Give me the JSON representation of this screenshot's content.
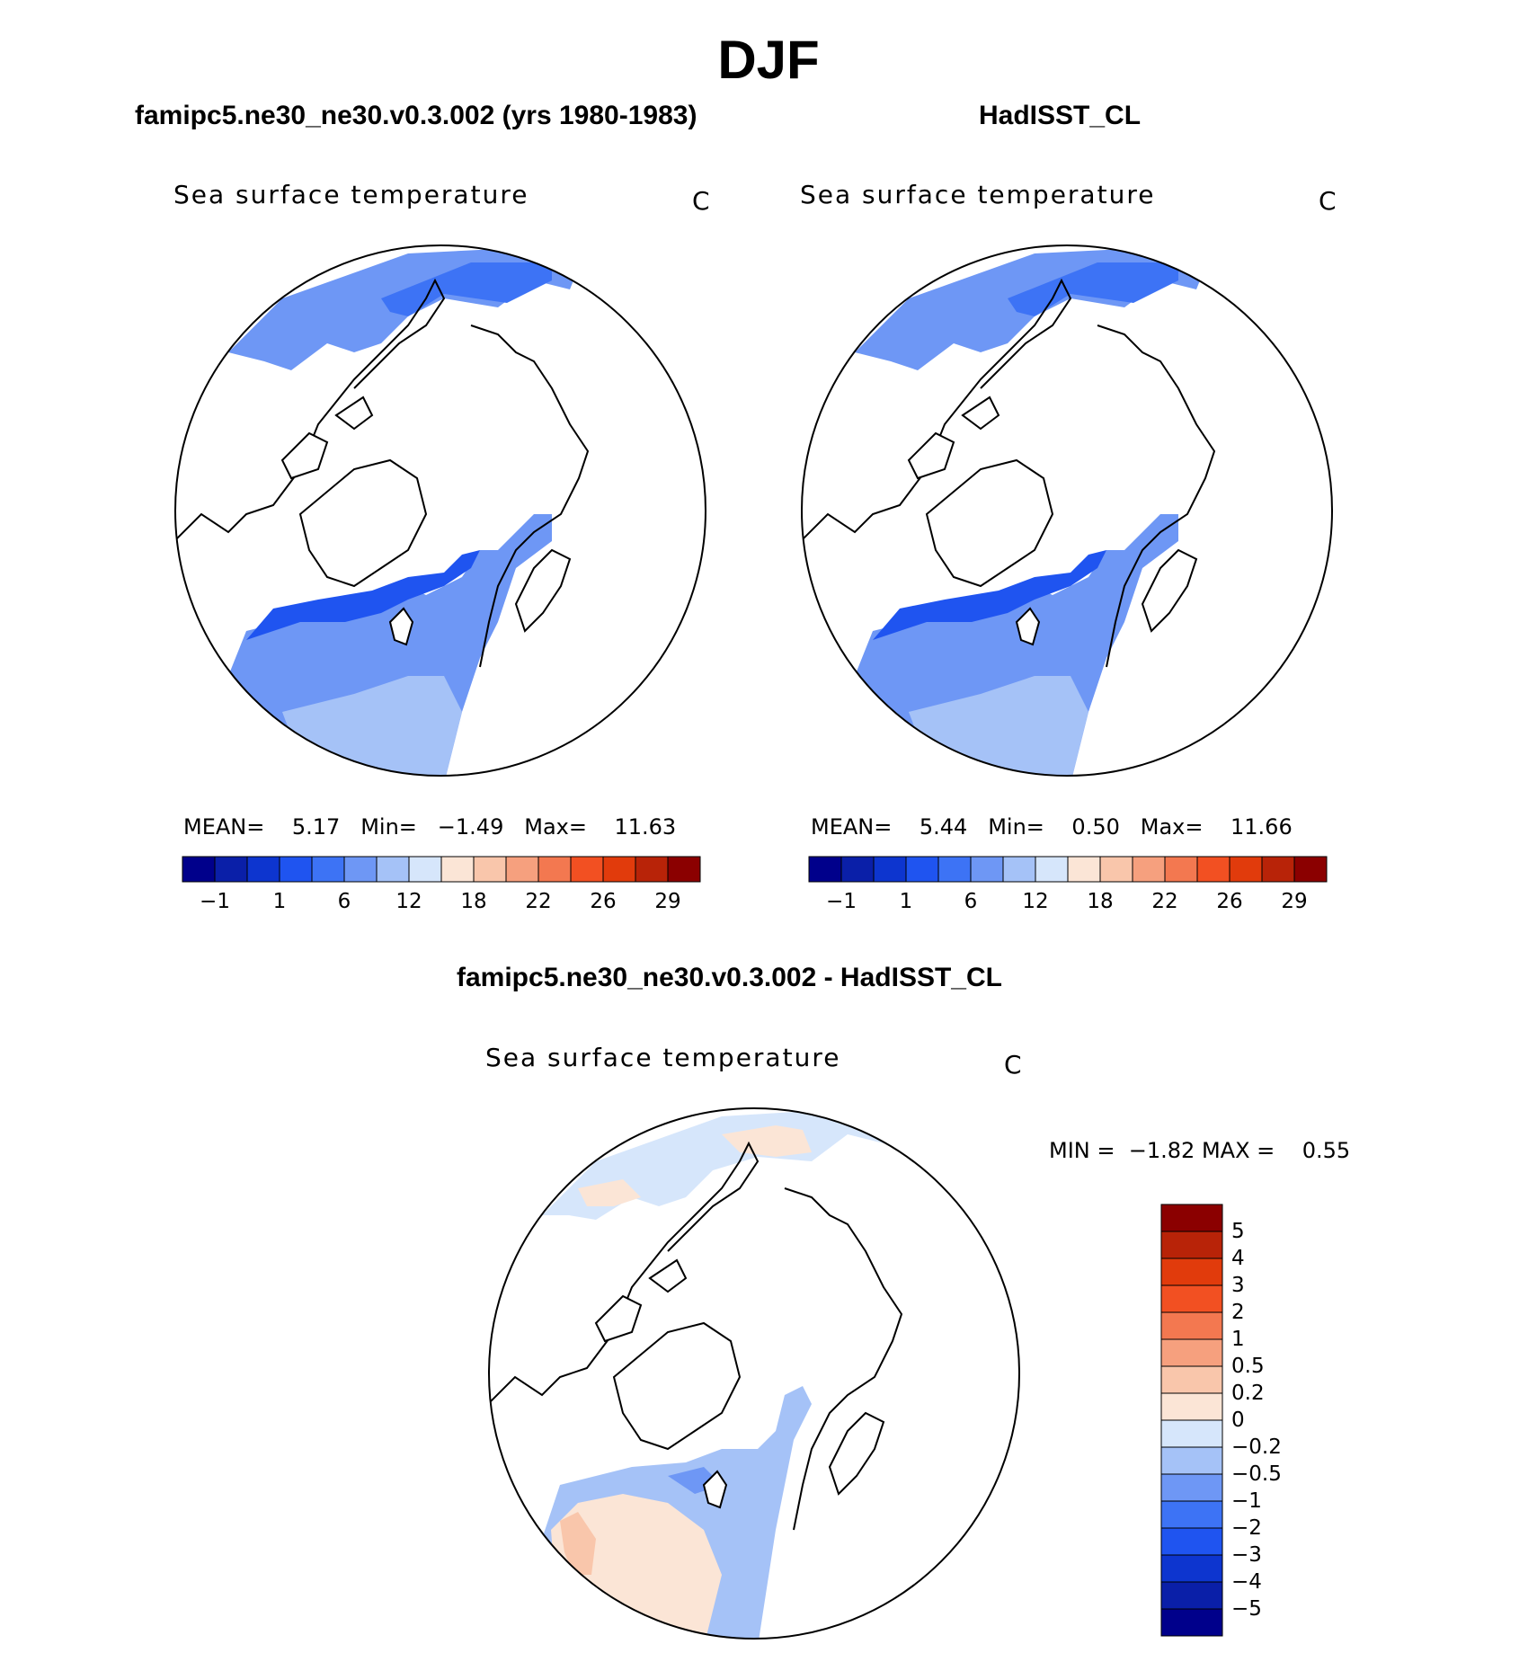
{
  "chart_data": [
    {
      "type": "polar-map",
      "title": "DJF",
      "panel_title": "famipc5.ne30_ne30.v0.3.002 (yrs 1980-1983)",
      "variable": "Sea surface temperature",
      "units": "C",
      "stats": {
        "mean_label": "MEAN=",
        "mean": "5.17",
        "min_label": "Min=",
        "min": "−1.49",
        "max_label": "Max=",
        "max": "11.63"
      },
      "colorbar_ticks": [
        "−1",
        "1",
        "6",
        "12",
        "18",
        "22",
        "26",
        "29"
      ]
    },
    {
      "type": "polar-map",
      "panel_title": "HadISST_CL",
      "variable": "Sea surface temperature",
      "units": "C",
      "stats": {
        "mean_label": "MEAN=",
        "mean": "5.44",
        "min_label": "Min=",
        "min": "0.50",
        "max_label": "Max=",
        "max": "11.66"
      },
      "colorbar_ticks": [
        "−1",
        "1",
        "6",
        "12",
        "18",
        "22",
        "26",
        "29"
      ]
    },
    {
      "type": "polar-map-difference",
      "panel_title": "famipc5.ne30_ne30.v0.3.002 - HadISST_CL",
      "variable": "Sea surface temperature",
      "units": "C",
      "stats": {
        "min_label": "MIN =",
        "min": "−1.82",
        "max_label": "MAX =",
        "max": "0.55"
      },
      "colorbar_ticks": [
        "5",
        "4",
        "3",
        "2",
        "1",
        "0.5",
        "0.2",
        "0",
        "−0.2",
        "−0.5",
        "−1",
        "−2",
        "−3",
        "−4",
        "−5"
      ]
    }
  ],
  "colors": {
    "sst_scale": [
      "#00008b",
      "#0a1fa8",
      "#0d35cf",
      "#1f54f0",
      "#3d73f5",
      "#6e97f5",
      "#a5c2f7",
      "#d6e6fb",
      "#fbe5d6",
      "#f9c6ab",
      "#f6a07e",
      "#f37850",
      "#f25022",
      "#e13b0c",
      "#b82308",
      "#8b0000"
    ],
    "diff_scale": [
      "#8b0000",
      "#b82308",
      "#e13b0c",
      "#f25022",
      "#f37850",
      "#f6a07e",
      "#f9c6ab",
      "#fbe5d6",
      "#d6e6fb",
      "#a5c2f7",
      "#6e97f5",
      "#3d73f5",
      "#1f54f0",
      "#0d35cf",
      "#0a1fa8",
      "#00008b"
    ]
  }
}
